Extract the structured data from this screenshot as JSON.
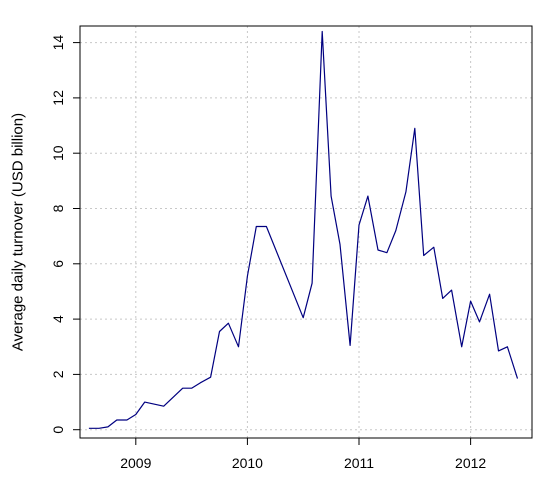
{
  "chart_data": {
    "type": "line",
    "title": "",
    "xlabel": "",
    "ylabel": "Average daily turnover (USD billion)",
    "grid": true,
    "xlim": [
      2008.5,
      2012.55
    ],
    "ylim": [
      -0.3,
      14.6
    ],
    "x_ticks": [
      2009,
      2010,
      2011,
      2012
    ],
    "x_tick_labels": [
      "2009",
      "2010",
      "2011",
      "2012"
    ],
    "y_ticks": [
      0,
      2,
      4,
      6,
      8,
      10,
      12,
      14
    ],
    "y_tick_labels": [
      "0",
      "2",
      "4",
      "6",
      "8",
      "10",
      "12",
      "14"
    ],
    "line_color": "#000080",
    "grid_color": "#c8c8c8",
    "series": [
      {
        "x": [
          2008.58,
          2008.67,
          2008.75,
          2008.83,
          2008.92,
          2009.0,
          2009.08,
          2009.25,
          2009.42,
          2009.5,
          2009.58,
          2009.67,
          2009.75,
          2009.83,
          2009.92,
          2010.0,
          2010.08,
          2010.17,
          2010.5,
          2010.58,
          2010.67,
          2010.75,
          2010.83,
          2010.92,
          2011.0,
          2011.08,
          2011.17,
          2011.25,
          2011.33,
          2011.42,
          2011.5,
          2011.58,
          2011.67,
          2011.75,
          2011.83,
          2011.92,
          2012.0,
          2012.08,
          2012.17,
          2012.25,
          2012.33,
          2012.42
        ],
        "y": [
          0.05,
          0.05,
          0.1,
          0.35,
          0.35,
          0.55,
          1.0,
          0.85,
          1.5,
          1.5,
          1.7,
          1.9,
          3.55,
          3.85,
          3.0,
          5.55,
          7.35,
          7.35,
          4.05,
          5.3,
          14.4,
          8.45,
          6.7,
          3.05,
          7.4,
          8.45,
          6.5,
          6.4,
          7.2,
          8.6,
          10.9,
          6.3,
          6.6,
          4.75,
          5.05,
          3.0,
          4.65,
          3.9,
          4.9,
          2.85,
          3.0,
          1.85
        ]
      }
    ]
  }
}
